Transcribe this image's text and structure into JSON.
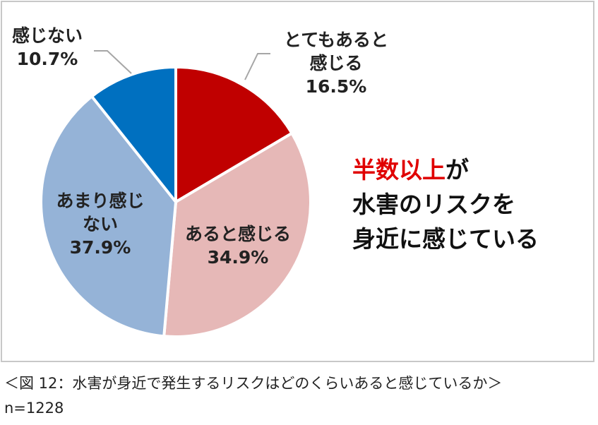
{
  "chart_data": {
    "type": "pie",
    "slices": [
      {
        "label_lines": [
          "とてもあると",
          "感じる"
        ],
        "value": 16.5,
        "value_text": "16.5%",
        "color": "#c00000"
      },
      {
        "label_lines": [
          "あると感じる"
        ],
        "value": 34.9,
        "value_text": "34.9%",
        "color": "#e6b8b7"
      },
      {
        "label_lines": [
          "あまり感じ",
          "ない"
        ],
        "value": 37.9,
        "value_text": "37.9%",
        "color": "#95b3d7"
      },
      {
        "label_lines": [
          "感じない"
        ],
        "value": 10.7,
        "value_text": "10.7%",
        "color": "#0070c0"
      }
    ],
    "start": "12 o'clock",
    "direction": "clockwise"
  },
  "callout": {
    "highlight": "半数以上",
    "line1_rest": "が",
    "line2": "水害のリスクを",
    "line3": "身近に感じている",
    "highlight_color": "#e00000"
  },
  "caption": "＜図 12：水害が身近で発生するリスクはどのくらいあると感じているか＞",
  "sample_size": "n=1228"
}
